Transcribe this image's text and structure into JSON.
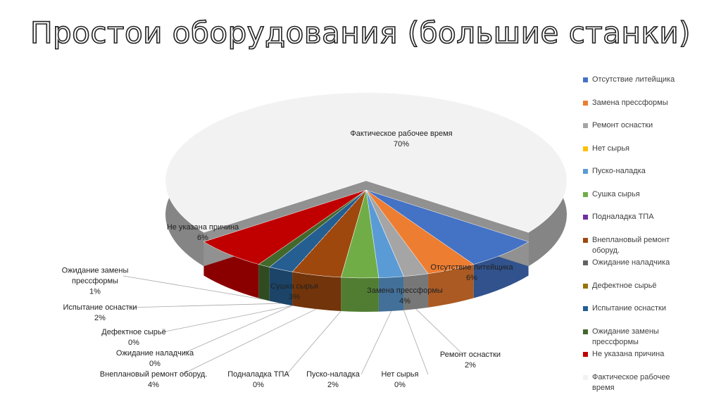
{
  "chart_data": {
    "type": "pie",
    "title": "Простои оборудования (большие станки)",
    "categories": [
      "Отсутствие литейщика",
      "Замена прессформы",
      "Ремонт оснастки",
      "Нет сырья",
      "Пуско-наладка",
      "Сушка сырья",
      "Подналадка ТПА",
      "Внеплановый ремонт оборуд.",
      "Ожидание наладчика",
      "Дефектное сырьё",
      "Испытание оснастки",
      "Ожидание замены прессформы",
      "Не указана причина",
      "Фактическое рабочее время"
    ],
    "values": [
      6,
      4,
      2,
      0,
      2,
      3,
      0,
      4,
      0,
      0,
      2,
      1,
      6,
      70
    ],
    "value_labels": [
      "6%",
      "4%",
      "2%",
      "0%",
      "2%",
      "3%",
      "0%",
      "4%",
      "0%",
      "0%",
      "2%",
      "1%",
      "6%",
      "70%"
    ],
    "colors": [
      "#4472c4",
      "#ed7d31",
      "#a5a5a5",
      "#ffc000",
      "#5b9bd5",
      "#70ad47",
      "#7030a0",
      "#9e480e",
      "#636363",
      "#997300",
      "#255e91",
      "#43682b",
      "#c00000",
      "#f2f2f2"
    ],
    "legend": "right"
  }
}
